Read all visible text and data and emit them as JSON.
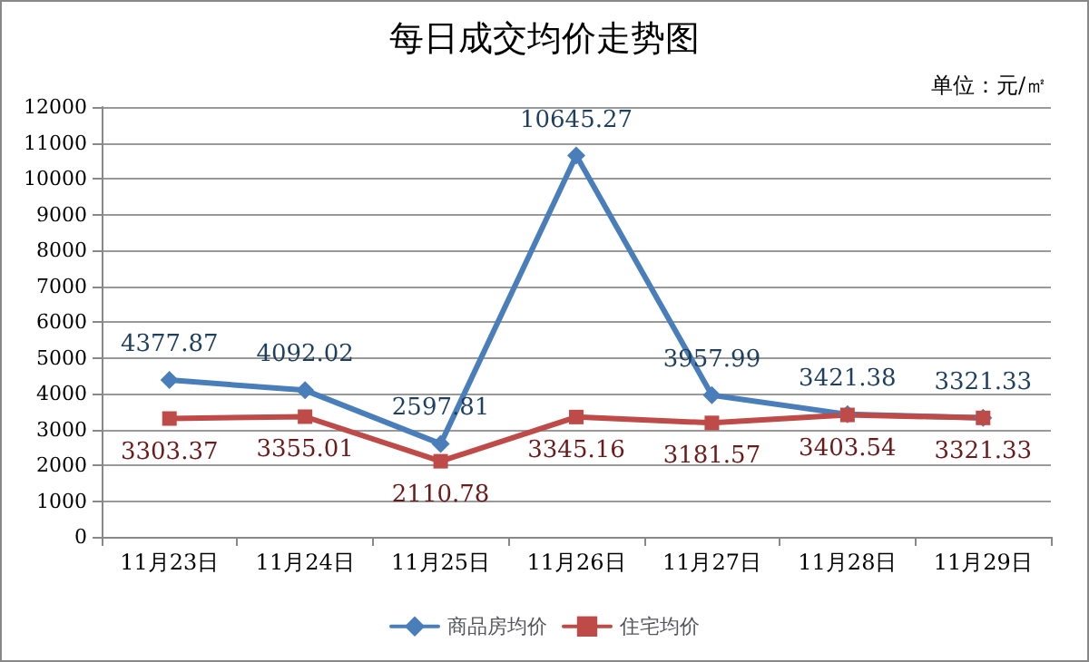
{
  "chart_data": {
    "type": "line",
    "title": "每日成交均价走势图",
    "annotations": [
      "单位：元/㎡"
    ],
    "categories": [
      "11月23日",
      "11月24日",
      "11月25日",
      "11月26日",
      "11月27日",
      "11月28日",
      "11月29日"
    ],
    "series": [
      {
        "name": "商品房均价",
        "color": "#4a7ebb",
        "marker": "diamond",
        "values": [
          4377.87,
          4092.02,
          2597.81,
          10645.27,
          3957.99,
          3421.38,
          3321.33
        ]
      },
      {
        "name": "住宅均价",
        "color": "#be4b48",
        "marker": "square",
        "values": [
          3303.37,
          3355.01,
          2110.78,
          3345.16,
          3181.57,
          3403.54,
          3321.33
        ]
      }
    ],
    "ylim": [
      0,
      12000
    ],
    "yticks": [
      0,
      1000,
      2000,
      3000,
      4000,
      5000,
      6000,
      7000,
      8000,
      9000,
      10000,
      11000,
      12000
    ],
    "grid": "y",
    "legend": "bottom",
    "data_labels": true,
    "line_style": "solid"
  }
}
